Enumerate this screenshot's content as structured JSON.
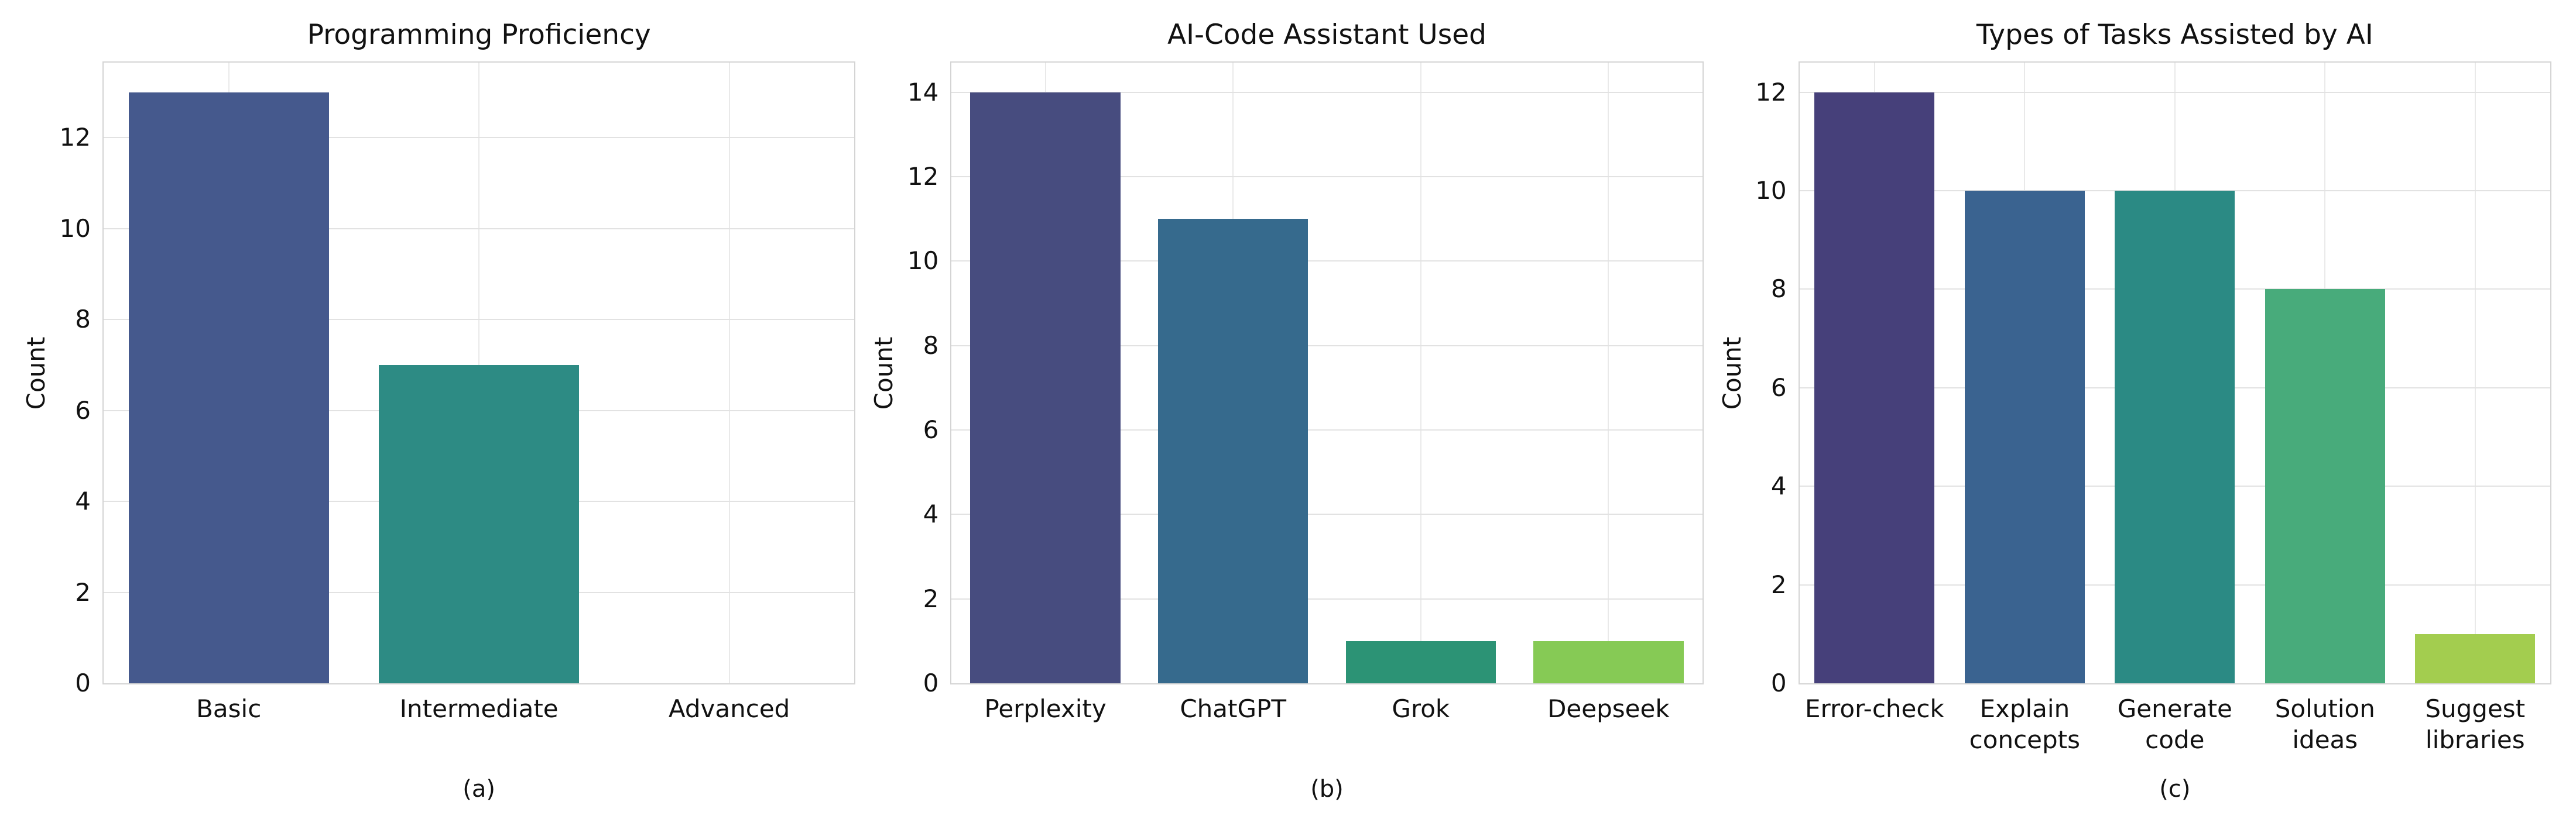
{
  "figure": {
    "background": "#ffffff"
  },
  "chart_data": [
    {
      "type": "bar",
      "title": "Programming Proficiency",
      "xlabel": "",
      "ylabel": "Count",
      "sublabel": "(a)",
      "categories": [
        "Basic",
        "Intermediate",
        "Advanced"
      ],
      "values": [
        13,
        7,
        0
      ],
      "colors": [
        "#45598d",
        "#2d8b84",
        "#86ca55"
      ],
      "yticks": [
        0,
        2,
        4,
        6,
        8,
        10,
        12
      ],
      "ylim": [
        0,
        13.65
      ],
      "grid": true,
      "legend": false
    },
    {
      "type": "bar",
      "title": "AI-Code Assistant Used",
      "xlabel": "",
      "ylabel": "Count",
      "sublabel": "(b)",
      "categories": [
        "Perplexity",
        "ChatGPT",
        "Grok",
        "Deepseek"
      ],
      "values": [
        14,
        11,
        1,
        1
      ],
      "colors": [
        "#474c7f",
        "#366a8d",
        "#2c9375",
        "#86ca55"
      ],
      "yticks": [
        0,
        2,
        4,
        6,
        8,
        10,
        12,
        14
      ],
      "ylim": [
        0,
        14.7
      ],
      "grid": true,
      "legend": false
    },
    {
      "type": "bar",
      "title": "Types of Tasks Assisted by AI",
      "xlabel": "",
      "ylabel": "Count",
      "sublabel": "(c)",
      "categories": [
        "Error-check",
        "Explain\nconcepts",
        "Generate\ncode",
        "Solution\nideas",
        "Suggest\nlibraries"
      ],
      "values": [
        12,
        10,
        10,
        8,
        1
      ],
      "colors": [
        "#46407a",
        "#3a6390",
        "#2b8a84",
        "#48ab7b",
        "#a3cd4f"
      ],
      "yticks": [
        0,
        2,
        4,
        6,
        8,
        10,
        12
      ],
      "ylim": [
        0,
        12.6
      ],
      "grid": true,
      "legend": false
    }
  ]
}
